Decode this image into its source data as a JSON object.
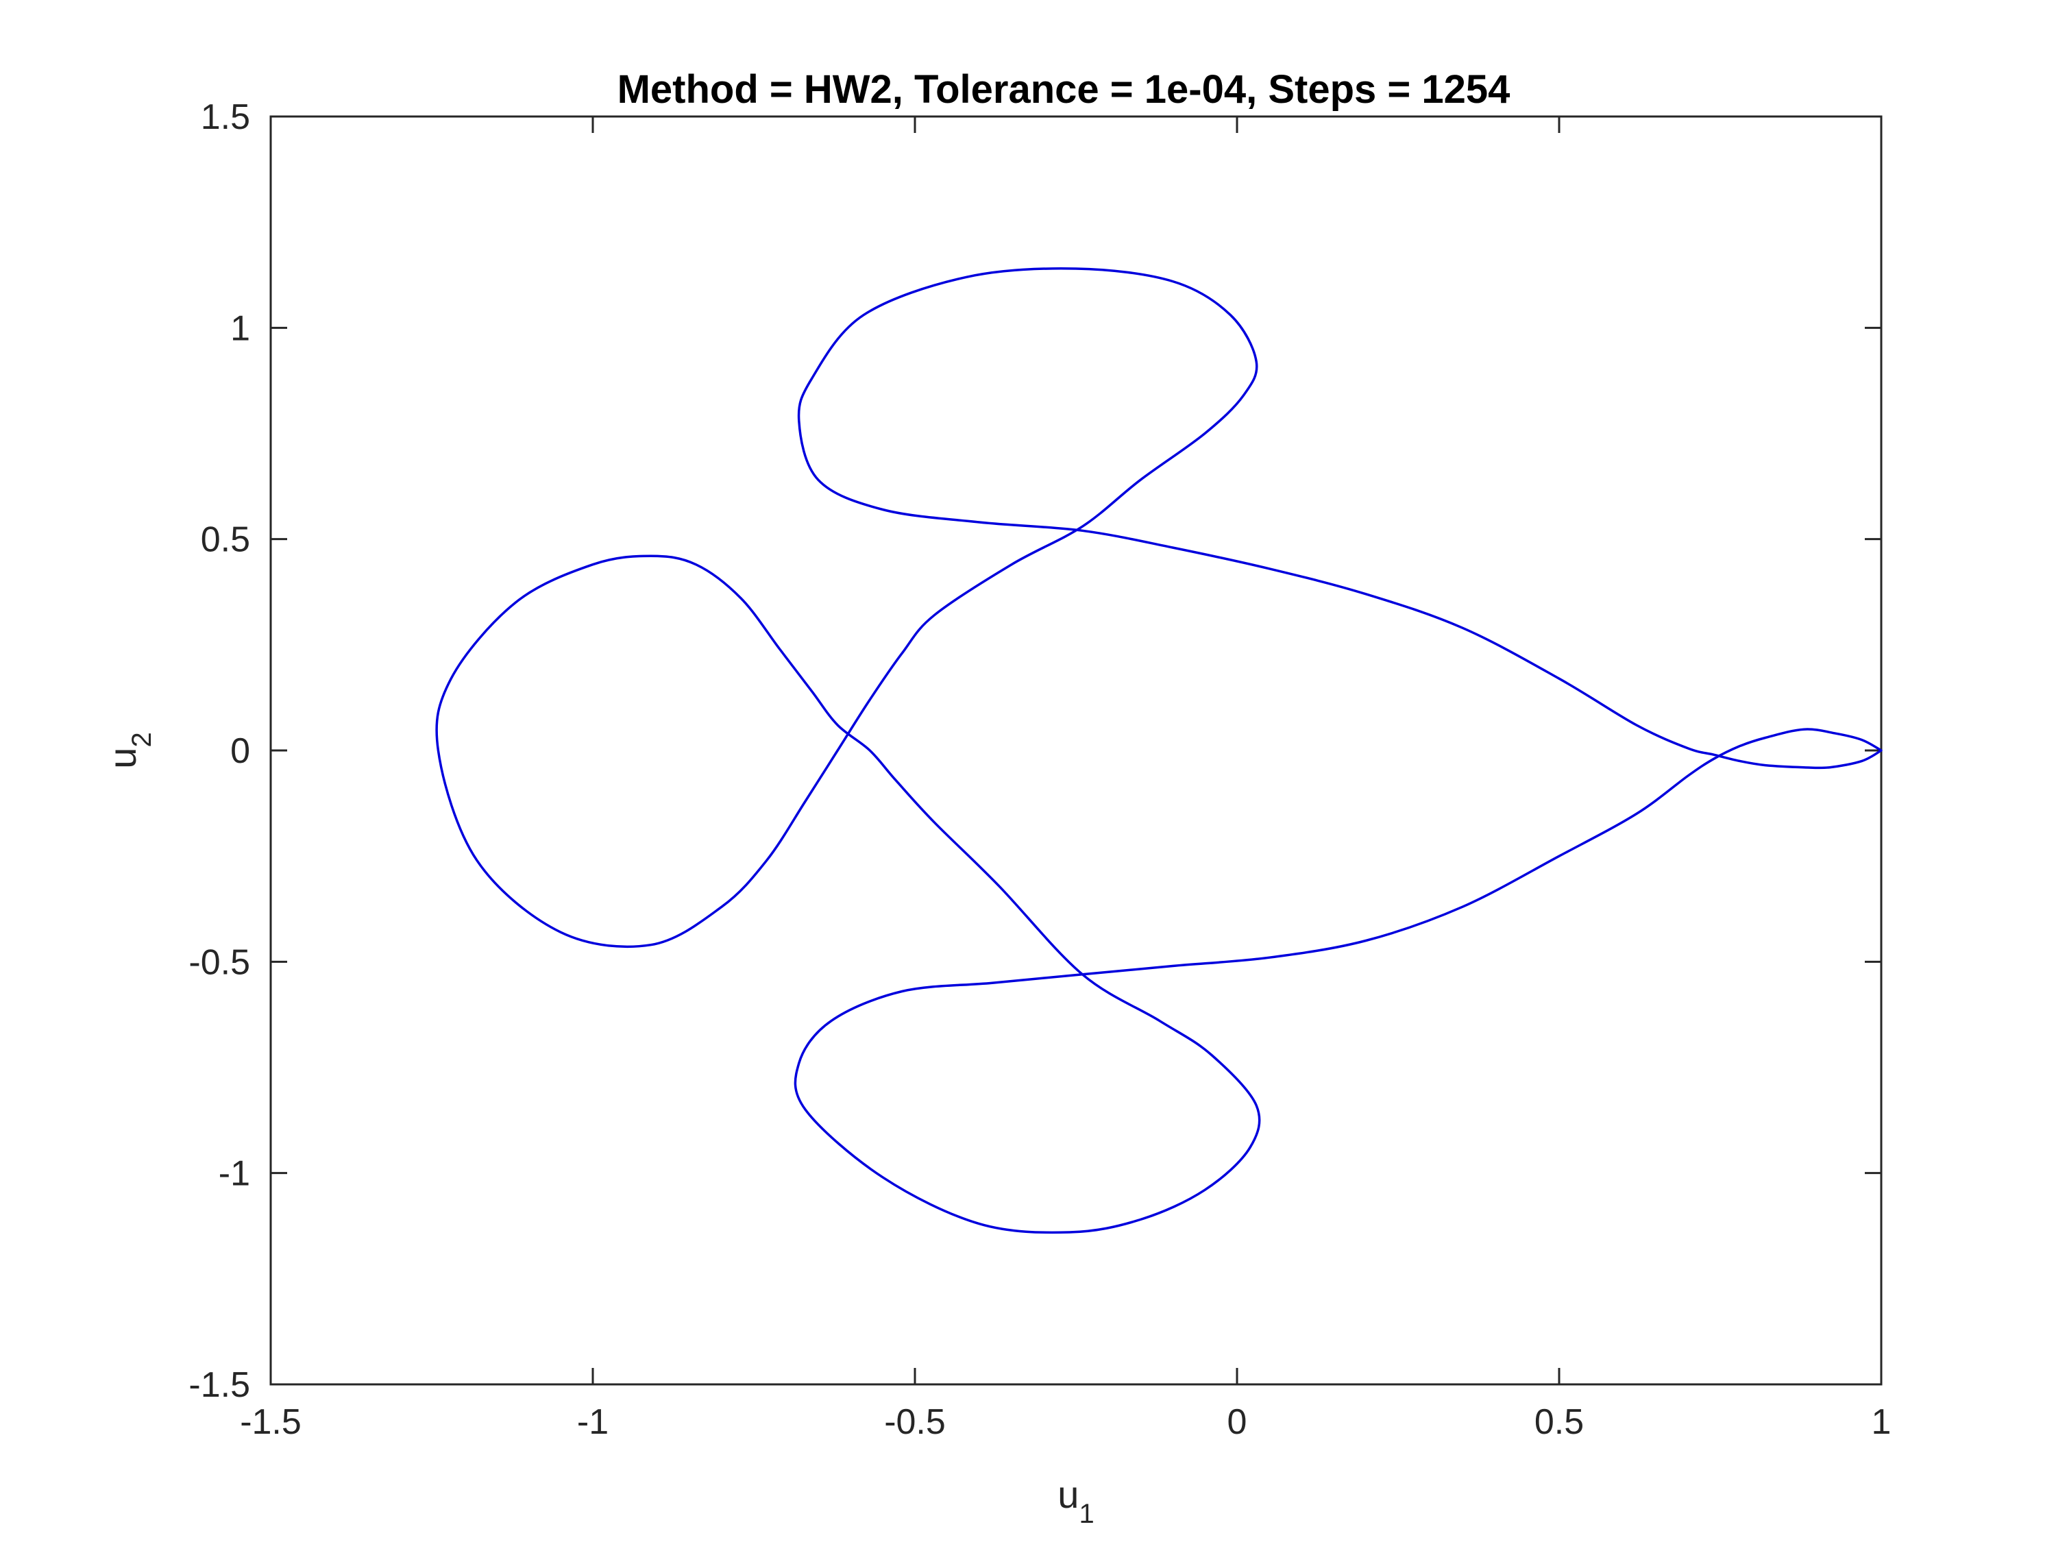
{
  "chart_data": {
    "type": "line",
    "title": "Method = HW2, Tolerance = 1e-04, Steps = 1254",
    "xlabel": "u",
    "xlabel_sub": "1",
    "ylabel": "u",
    "ylabel_sub": "2",
    "xlim": [
      -1.5,
      1
    ],
    "ylim": [
      -1.5,
      1.5
    ],
    "xticks": [
      -1.5,
      -1,
      -0.5,
      0,
      0.5,
      1
    ],
    "xtick_labels": [
      "-1.5",
      "-1",
      "-0.5",
      "0",
      "0.5",
      "1"
    ],
    "yticks": [
      -1.5,
      -1,
      -0.5,
      0,
      0.5,
      1,
      1.5
    ],
    "ytick_labels": [
      "-1.5",
      "-1",
      "-0.5",
      "0",
      "0.5",
      "1",
      "1.5"
    ],
    "grid": false,
    "series": [
      {
        "color": "#0000dd",
        "x": [
          1.0,
          0.97,
          0.92,
          0.88,
          0.82,
          0.78,
          0.74,
          0.7,
          0.62,
          0.5,
          0.35,
          0.2,
          0.05,
          -0.1,
          -0.24,
          -0.4,
          -0.55,
          -0.65,
          -0.68,
          -0.66,
          -0.58,
          -0.42,
          -0.25,
          -0.1,
          -0.01,
          0.03,
          0.01,
          -0.05,
          -0.15,
          -0.24,
          -0.35,
          -0.47,
          -0.52,
          -0.57,
          -0.62,
          -0.67,
          -0.73,
          -0.8,
          -0.91,
          -1.05,
          -1.18,
          -1.24,
          -1.22,
          -1.12,
          -1.0,
          -0.91,
          -0.84,
          -0.77,
          -0.71,
          -0.66,
          -0.62,
          -0.57,
          -0.53,
          -0.47,
          -0.37,
          -0.24,
          -0.12,
          -0.04,
          0.03,
          0.02,
          -0.05,
          -0.15,
          -0.26,
          -0.4,
          -0.55,
          -0.67,
          -0.68,
          -0.63,
          -0.52,
          -0.38,
          -0.24,
          -0.1,
          0.05,
          0.2,
          0.35,
          0.5,
          0.62,
          0.7,
          0.74,
          0.78,
          0.82,
          0.88,
          0.93,
          0.97,
          1.0
        ],
        "y": [
          0.0,
          -0.025,
          -0.04,
          -0.04,
          -0.035,
          -0.025,
          -0.01,
          0.005,
          0.06,
          0.17,
          0.29,
          0.37,
          0.43,
          0.48,
          0.52,
          0.54,
          0.57,
          0.64,
          0.78,
          0.88,
          1.03,
          1.12,
          1.14,
          1.11,
          1.03,
          0.92,
          0.84,
          0.75,
          0.64,
          0.53,
          0.44,
          0.32,
          0.23,
          0.12,
          0.0,
          -0.12,
          -0.26,
          -0.37,
          -0.46,
          -0.43,
          -0.26,
          0.0,
          0.17,
          0.35,
          0.44,
          0.46,
          0.44,
          0.36,
          0.24,
          0.14,
          0.06,
          0.0,
          -0.07,
          -0.17,
          -0.32,
          -0.53,
          -0.64,
          -0.72,
          -0.84,
          -0.94,
          -1.04,
          -1.11,
          -1.14,
          -1.12,
          -1.01,
          -0.85,
          -0.74,
          -0.64,
          -0.57,
          -0.55,
          -0.53,
          -0.51,
          -0.49,
          -0.45,
          -0.37,
          -0.25,
          -0.15,
          -0.06,
          -0.02,
          0.01,
          0.03,
          0.05,
          0.04,
          0.025,
          0.0
        ]
      }
    ]
  }
}
